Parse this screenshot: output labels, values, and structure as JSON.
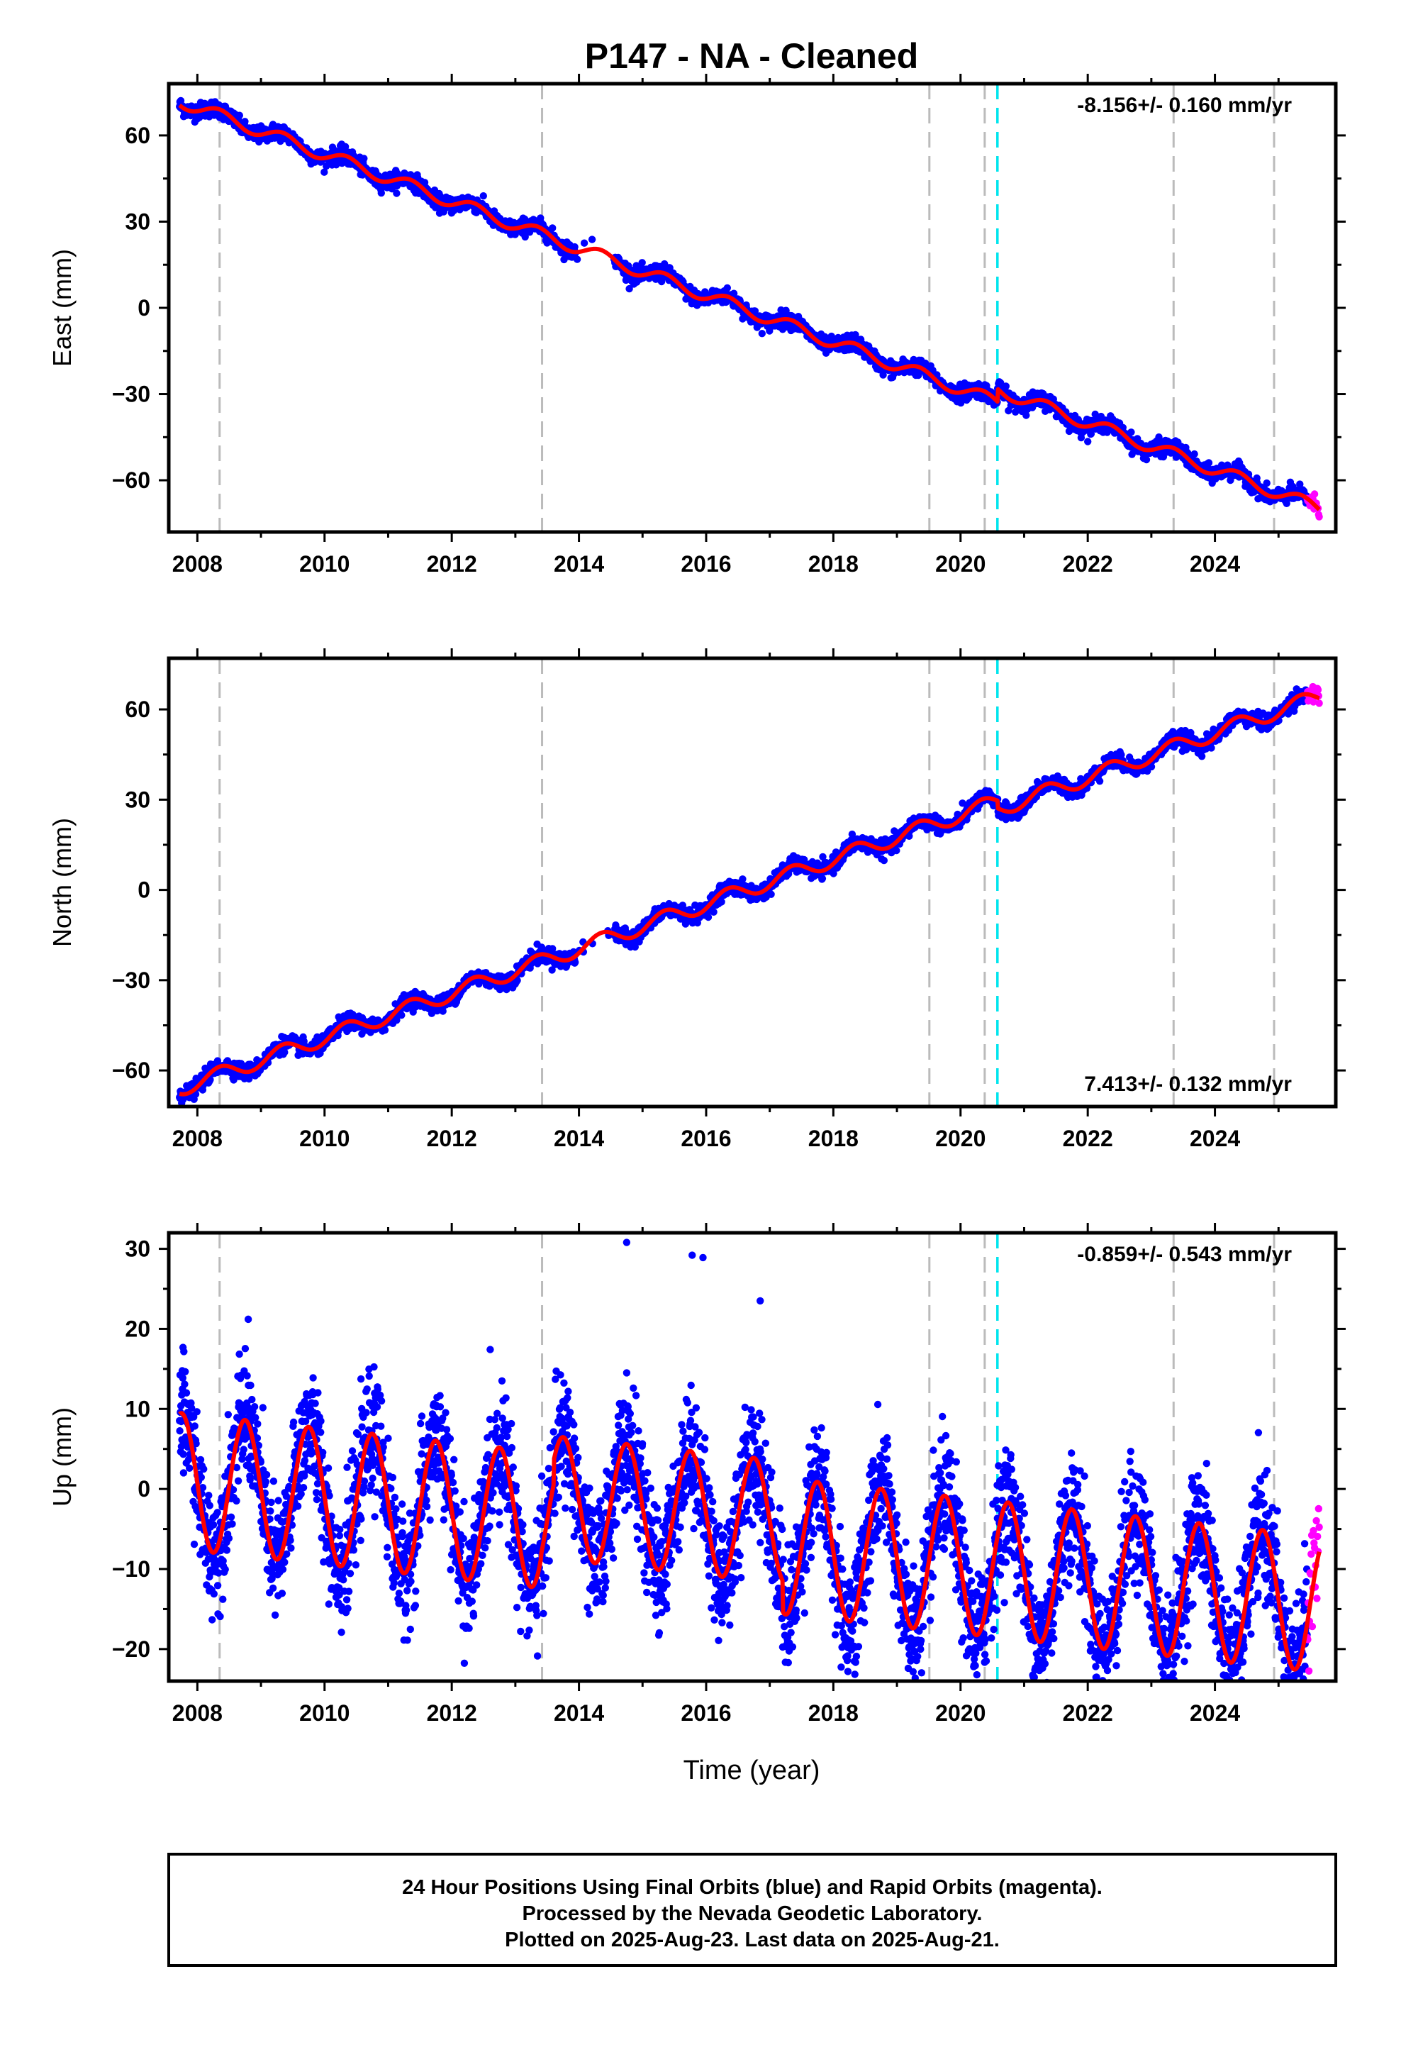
{
  "title": "P147  - NA - Cleaned",
  "footer": {
    "line1": "24 Hour Positions Using Final Orbits (blue) and Rapid Orbits (magenta).",
    "line2": "Processed by the Nevada Geodetic Laboratory.",
    "line3": "Plotted on 2025-Aug-23. Last data on 2025-Aug-21."
  },
  "colors": {
    "final_orbits": "#0000ff",
    "rapid_orbits": "#ff00ff",
    "model": "#ff0000",
    "event_lines": "#bbbbbb",
    "equipment_change": "#00e5ee"
  },
  "chart_data": [
    {
      "type": "scatter",
      "component": "east",
      "ylabel": "East (mm)",
      "rate_text": "-8.156+/- 0.160 mm/yr",
      "rate_position": "top-right",
      "velocity_mm_per_yr": -8.156,
      "xlim": [
        2007.55,
        2025.9
      ],
      "ylim": [
        -78,
        78
      ],
      "x_ticks": [
        2008,
        2010,
        2012,
        2014,
        2016,
        2018,
        2020,
        2022,
        2024
      ],
      "y_ticks": [
        60,
        30,
        0,
        -30,
        -60
      ],
      "y_tick_labels": [
        "60",
        "30",
        "0",
        "−30",
        "−60"
      ],
      "data_range": [
        2007.72,
        2025.64
      ],
      "model_start_value": 72,
      "seasonal_amplitude": 2.2,
      "scatter_sd": 1.4,
      "rapid_range": [
        2025.45,
        2025.64
      ],
      "event_lines_x": [
        2008.35,
        2013.42,
        2019.51,
        2020.38,
        2023.35,
        2024.93
      ],
      "equipment_change_x": 2020.58,
      "offsets": [
        {
          "x": 2020.58,
          "dy": 4.5
        }
      ],
      "grid": false,
      "legend": "none"
    },
    {
      "type": "scatter",
      "component": "north",
      "ylabel": "North (mm)",
      "rate_text": "7.413+/- 0.132 mm/yr",
      "rate_position": "bottom-right",
      "velocity_mm_per_yr": 7.413,
      "xlim": [
        2007.55,
        2025.9
      ],
      "ylim": [
        -72,
        77
      ],
      "x_ticks": [
        2008,
        2010,
        2012,
        2014,
        2016,
        2018,
        2020,
        2022,
        2024
      ],
      "y_ticks": [
        60,
        30,
        0,
        -30,
        -60
      ],
      "y_tick_labels": [
        "60",
        "30",
        "0",
        "−30",
        "−60"
      ],
      "data_range": [
        2007.72,
        2025.64
      ],
      "model_start_value": -66,
      "seasonal_amplitude": 2.6,
      "scatter_sd": 1.3,
      "rapid_range": [
        2025.45,
        2025.64
      ],
      "event_lines_x": [
        2008.35,
        2013.42,
        2019.51,
        2020.38,
        2023.35,
        2024.93
      ],
      "equipment_change_x": 2020.58,
      "offsets": [
        {
          "x": 2020.58,
          "dy": -2.5
        }
      ],
      "grid": false,
      "legend": "none"
    },
    {
      "type": "scatter",
      "component": "up",
      "ylabel": "Up (mm)",
      "xlabel": "Time (year)",
      "rate_text": "-0.859+/- 0.543 mm/yr",
      "rate_position": "top-right",
      "velocity_mm_per_yr": -0.859,
      "xlim": [
        2007.55,
        2025.9
      ],
      "ylim": [
        -24,
        32
      ],
      "x_ticks": [
        2008,
        2010,
        2012,
        2014,
        2016,
        2018,
        2020,
        2022,
        2024
      ],
      "y_ticks": [
        30,
        20,
        10,
        0,
        -10,
        -20
      ],
      "y_tick_labels": [
        "30",
        "20",
        "10",
        "0",
        "−10",
        "−20"
      ],
      "data_range": [
        2007.72,
        2025.64
      ],
      "model_start_value": 1,
      "seasonal_amplitude": 8.5,
      "scatter_sd": 3.6,
      "rapid_range": [
        2025.45,
        2025.64
      ],
      "event_lines_x": [
        2008.35,
        2013.42,
        2019.51,
        2020.38,
        2023.35,
        2024.93
      ],
      "equipment_change_x": 2020.58,
      "offsets": [],
      "outliers": [
        [
          2014.75,
          30.8
        ],
        [
          2015.78,
          29.2
        ],
        [
          2015.95,
          28.9
        ],
        [
          2008.8,
          21.2
        ],
        [
          2016.85,
          23.5
        ]
      ],
      "grid": false,
      "legend": "none"
    }
  ]
}
